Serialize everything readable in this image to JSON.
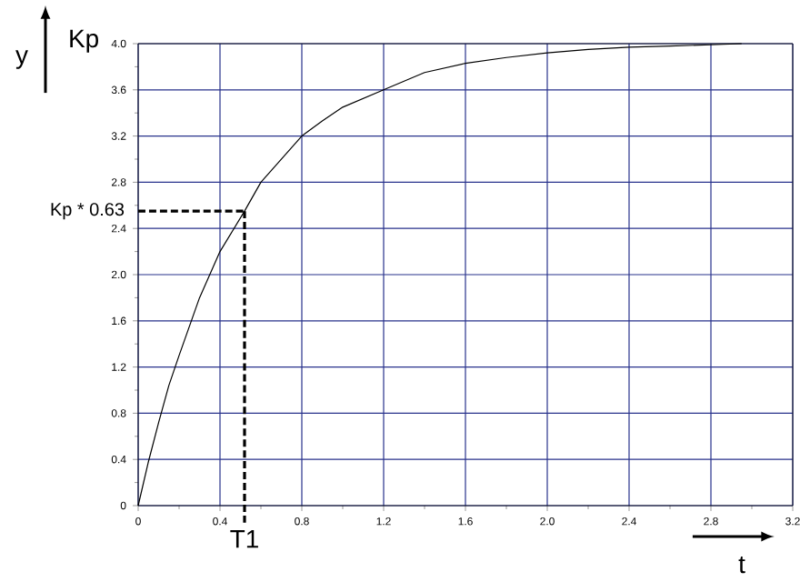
{
  "chart_data": {
    "type": "line",
    "xlabel": "t",
    "ylabel": "y",
    "annotations": [
      "Kp"
    ],
    "x": [
      0,
      0.05,
      0.1,
      0.15,
      0.2,
      0.3,
      0.4,
      0.52,
      0.6,
      0.7,
      0.8,
      0.9,
      1.0,
      1.2,
      1.4,
      1.6,
      1.8,
      2.0,
      2.2,
      2.4,
      2.6,
      2.8,
      2.95
    ],
    "series": [
      {
        "color": "#000000",
        "values": [
          0,
          0.38,
          0.72,
          1.04,
          1.3,
          1.8,
          2.2,
          2.55,
          2.8,
          3.0,
          3.2,
          3.33,
          3.45,
          3.6,
          3.75,
          3.83,
          3.88,
          3.92,
          3.95,
          3.97,
          3.98,
          3.99,
          4.0
        ]
      }
    ],
    "xlim": [
      0,
      3.2
    ],
    "ylim": [
      0,
      4.0
    ],
    "xticks": [
      0,
      0.4,
      0.8,
      1.2,
      1.6,
      {
        "value": 2,
        "label": "2.0"
      },
      2.4,
      2.8,
      3.2
    ],
    "yticks": [
      0,
      0.4,
      0.8,
      1.2,
      1.6,
      {
        "value": 2,
        "label": "2.0"
      },
      2.4,
      2.8,
      3.2,
      3.6,
      {
        "value": 4,
        "label": "4.0"
      }
    ],
    "ref_lines": [
      {
        "axis": "y",
        "value": 2.55,
        "label": "Kp * 0.63",
        "color": "#000000",
        "line_style": "dashed"
      },
      {
        "axis": "x",
        "value": 0.52,
        "label": "T1",
        "color": "#000000",
        "line_style": "dashed"
      }
    ],
    "grid": true,
    "marker": "none",
    "line_style": "solid"
  }
}
